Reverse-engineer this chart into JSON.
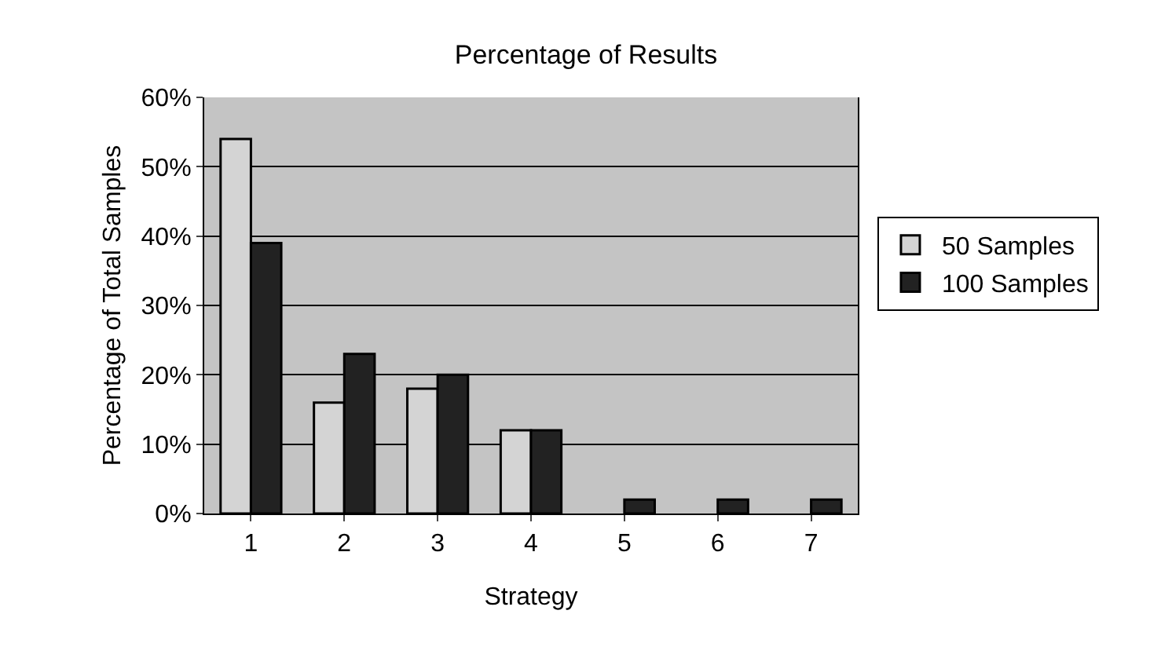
{
  "chart_data": {
    "type": "bar",
    "title": "Percentage of Results",
    "xlabel": "Strategy",
    "ylabel": "Percentage of Total Samples",
    "categories": [
      "1",
      "2",
      "3",
      "4",
      "5",
      "6",
      "7"
    ],
    "series": [
      {
        "name": "50 Samples",
        "color": "#d4d4d4",
        "values": [
          54,
          16,
          18,
          12,
          0,
          0,
          0
        ]
      },
      {
        "name": "100 Samples",
        "color": "#222222",
        "values": [
          39,
          23,
          20,
          12,
          2,
          2,
          2
        ]
      }
    ],
    "ylim": [
      0,
      60
    ],
    "yticks": [
      {
        "value": 0,
        "label": "0%"
      },
      {
        "value": 10,
        "label": "10%"
      },
      {
        "value": 20,
        "label": "20%"
      },
      {
        "value": 30,
        "label": "30%"
      },
      {
        "value": 40,
        "label": "40%"
      },
      {
        "value": 50,
        "label": "50%"
      },
      {
        "value": 60,
        "label": "60%"
      }
    ],
    "grid": "y",
    "legend": "right"
  }
}
